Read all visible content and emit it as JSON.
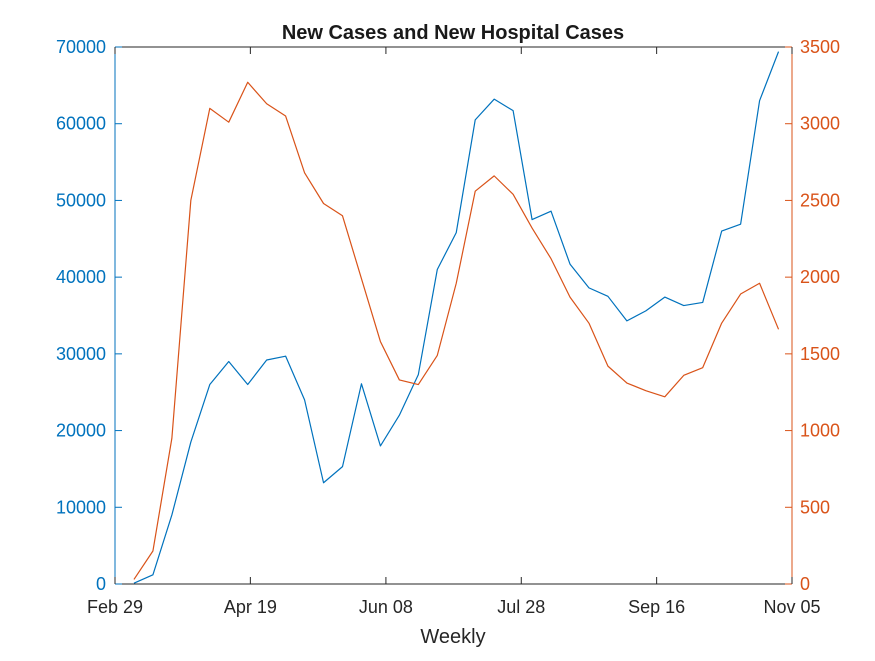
{
  "chart_data": {
    "type": "line",
    "title": "New Cases and New Hospital Cases",
    "xlabel": "Weekly",
    "ylabel_left": "",
    "ylabel_right": "",
    "x_tick_labels": [
      "Feb 29",
      "Apr 19",
      "Jun 08",
      "Jul 28",
      "Sep 16",
      "Nov 05"
    ],
    "x_ticks_weeks": [
      0,
      7.14,
      14.29,
      21.43,
      28.57,
      35.71
    ],
    "xlim_weeks": [
      0,
      35.71
    ],
    "ylim_left": [
      0,
      70000
    ],
    "yticks_left": [
      0,
      10000,
      20000,
      30000,
      40000,
      50000,
      60000,
      70000
    ],
    "ylim_right": [
      0,
      3500
    ],
    "yticks_right": [
      0,
      500,
      1000,
      1500,
      2000,
      2500,
      3000,
      3500
    ],
    "grid": false,
    "legend": "none",
    "colors": {
      "left_axis": "#0072BD",
      "right_axis": "#D95319",
      "text": "#262626"
    },
    "series": [
      {
        "axis": "left",
        "color": "#0072BD",
        "x_weeks": [
          1,
          2,
          3,
          4,
          5,
          6,
          7,
          8,
          9,
          10,
          11,
          12,
          13,
          14,
          15,
          16,
          17,
          18,
          19,
          20,
          21,
          22,
          23,
          24,
          25,
          26,
          27,
          28,
          29,
          30,
          31,
          32,
          33,
          34,
          35
        ],
        "values": [
          100,
          1200,
          9000,
          18500,
          26000,
          29000,
          26000,
          29200,
          29700,
          24000,
          13200,
          15300,
          26100,
          18000,
          22000,
          27300,
          41000,
          45800,
          60500,
          63200,
          61700,
          47500,
          48600,
          41700,
          38600,
          37500,
          34300,
          35600,
          37400,
          36300,
          36700,
          46000,
          46900,
          63000,
          69400
        ]
      },
      {
        "axis": "right",
        "color": "#D95319",
        "x_weeks": [
          1,
          2,
          3,
          4,
          5,
          6,
          7,
          8,
          9,
          10,
          11,
          12,
          13,
          14,
          15,
          16,
          17,
          18,
          19,
          20,
          21,
          22,
          23,
          24,
          25,
          26,
          27,
          28,
          29,
          30,
          31,
          32,
          33,
          34,
          35
        ],
        "values": [
          30,
          215,
          950,
          2500,
          3100,
          3010,
          3270,
          3130,
          3050,
          2680,
          2480,
          2400,
          1990,
          1580,
          1330,
          1300,
          1490,
          1960,
          2560,
          2660,
          2540,
          2320,
          2120,
          1870,
          1700,
          1420,
          1310,
          1260,
          1220,
          1360,
          1410,
          1700,
          1890,
          1960,
          1660
        ]
      }
    ]
  }
}
